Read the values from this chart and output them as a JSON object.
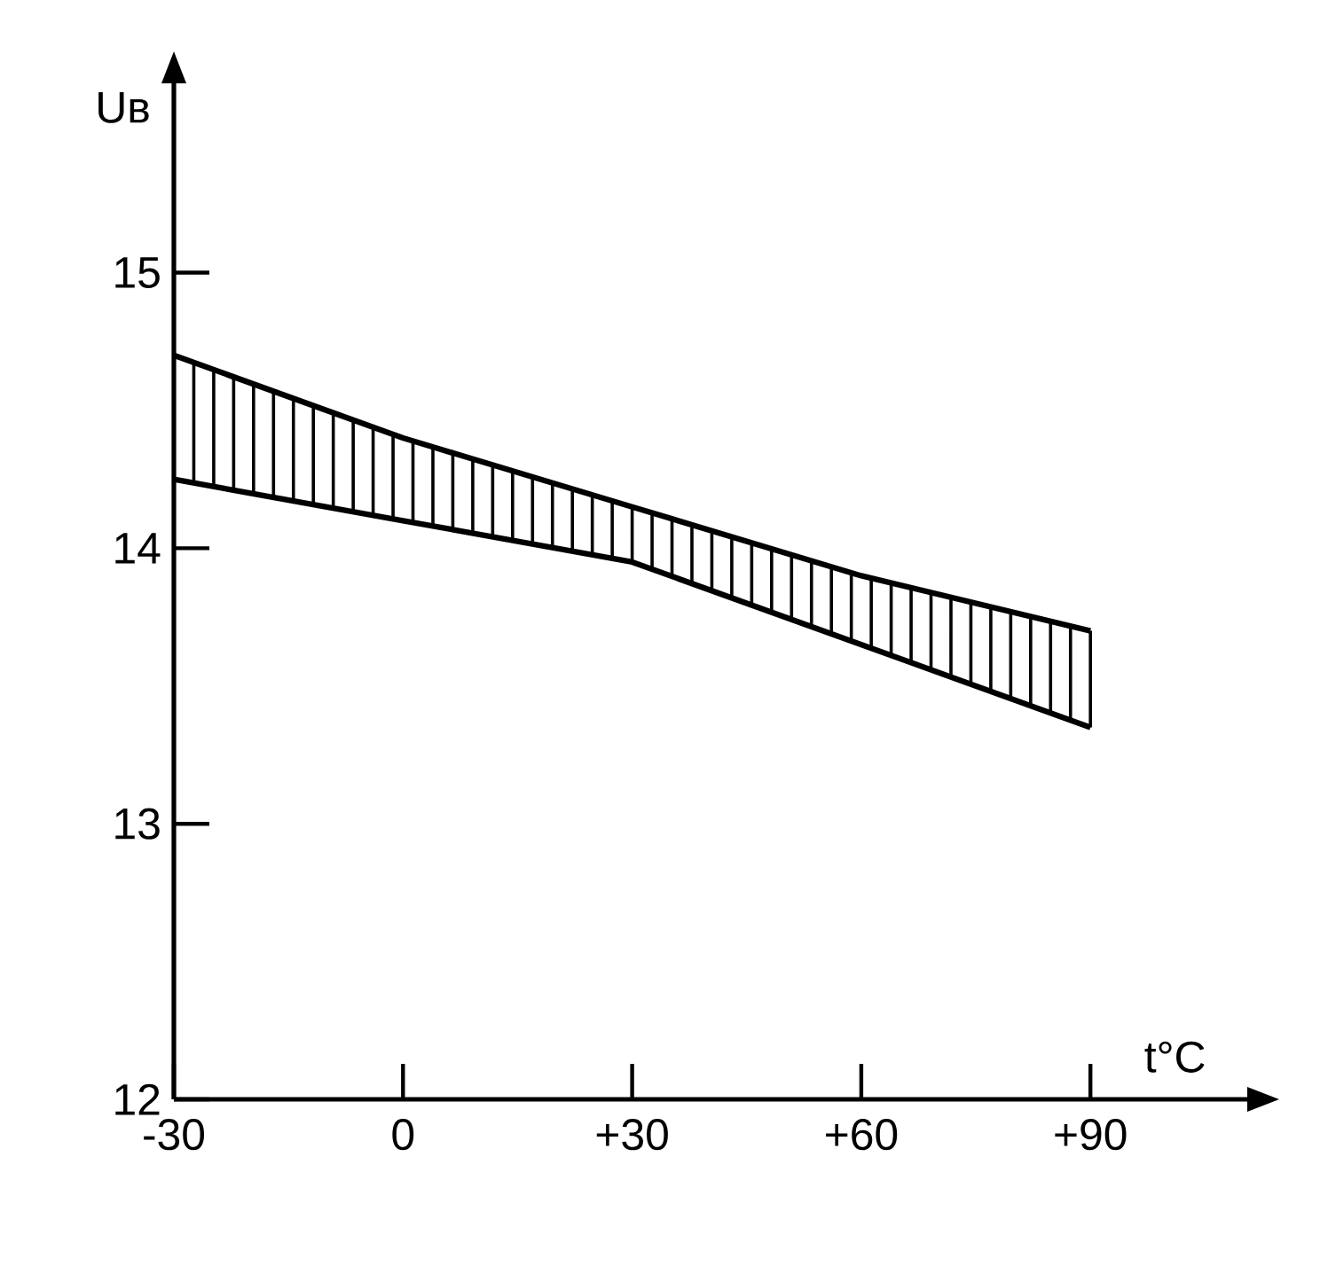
{
  "chart_data": {
    "type": "line",
    "xlabel": "t°C",
    "ylabel": "Uв",
    "x": [
      -30,
      0,
      30,
      60,
      90
    ],
    "series": [
      {
        "color": "#000000",
        "values": [
          14.7,
          14.4,
          14.15,
          13.9,
          13.7
        ]
      },
      {
        "color": "#000000",
        "values": [
          14.25,
          14.1,
          13.95,
          13.65,
          13.35
        ]
      }
    ],
    "xlim": [
      -30,
      111
    ],
    "ylim": [
      12,
      15.7
    ],
    "xticks": [
      -30,
      0,
      {
        "value": 30,
        "label": "+30"
      },
      {
        "value": 60,
        "label": "+60"
      },
      {
        "value": 90,
        "label": "+90"
      }
    ],
    "yticks": [
      12,
      13,
      14,
      15
    ]
  }
}
